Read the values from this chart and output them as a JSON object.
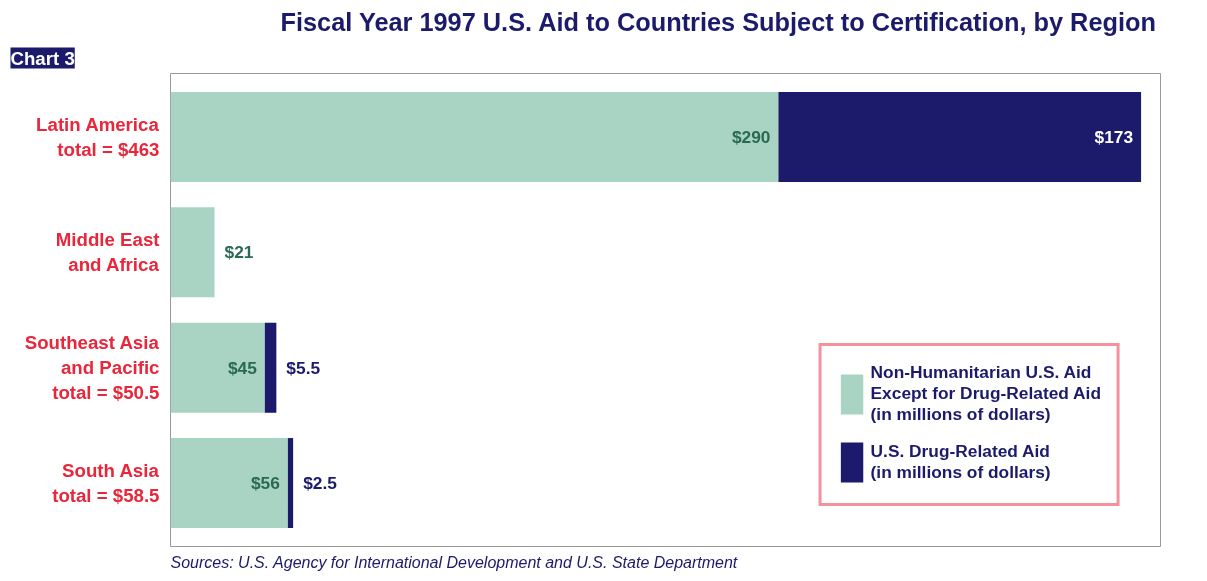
{
  "chart_data": {
    "type": "bar",
    "orientation": "horizontal",
    "stacked": true,
    "title": "Fiscal Year 1997 U.S. Aid to Countries Subject to Certification, by Region",
    "categories": [
      "Latin America\ntotal = $463",
      "Middle East\nand Africa",
      "Southeast Asia\nand Pacific\ntotal = $50.5",
      "South Asia\ntotal = $58.5"
    ],
    "series": [
      {
        "name": "Non-Humanitarian U.S. Aid\nExcept for Drug-Related Aid\n(in millions of dollars)",
        "color": "#a9d3c3",
        "values": [
          290,
          21,
          45,
          56
        ],
        "value_labels": [
          "$290",
          "$21",
          "$45",
          "$56"
        ]
      },
      {
        "name": "U.S. Drug-Related Aid\n(in millions of dollars)",
        "color": "#1b1a6b",
        "values": [
          173,
          null,
          5.5,
          2.5
        ],
        "value_labels": [
          "$173",
          null,
          "$5.5",
          "$2.5"
        ]
      }
    ],
    "tick_labels": "y",
    "grid": false,
    "legend": "bottom right",
    "annotations": [
      "Chart 3",
      "Sources: U.S. Agency for International Development and U.S. State Department"
    ]
  }
}
